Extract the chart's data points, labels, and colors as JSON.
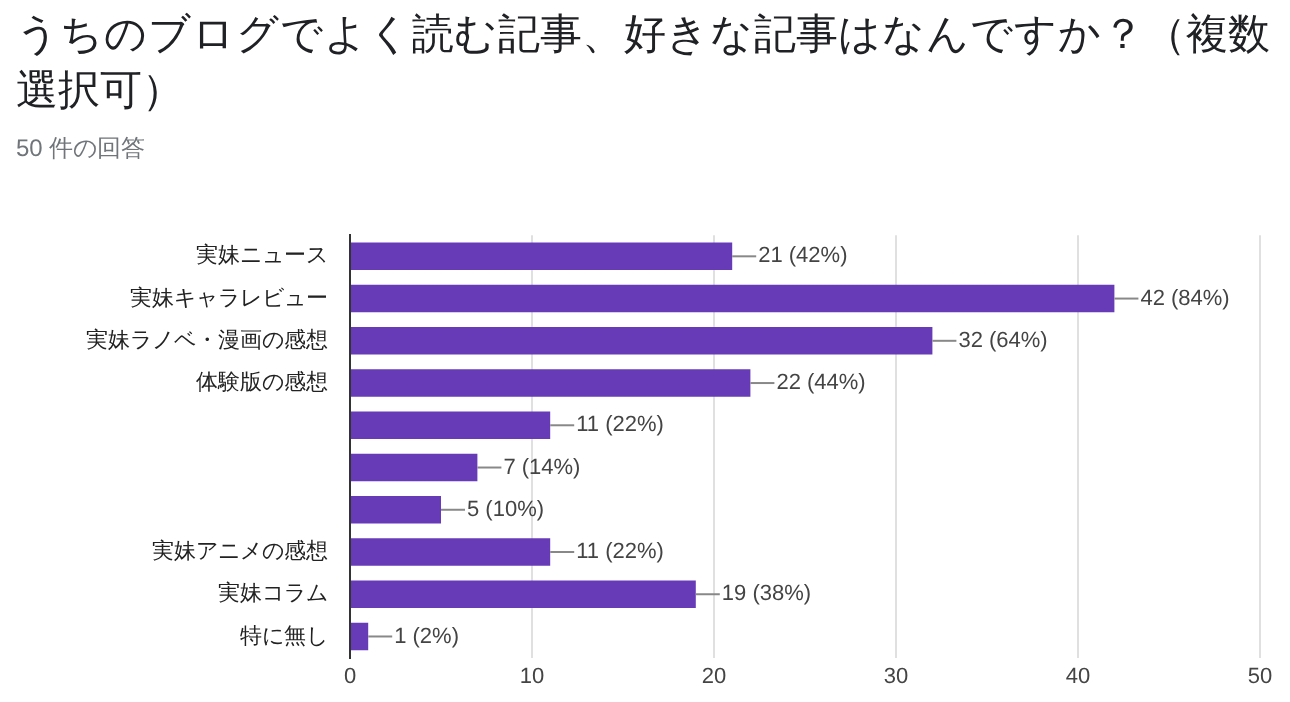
{
  "chart_data": {
    "type": "bar",
    "orientation": "horizontal",
    "title": "うちのブログでよく読む記事、好きな記事はなんですか？（複数選択可）",
    "subtitle": "50 件の回答",
    "categories": [
      "実妹ニュース",
      "実妹キャラレビュー",
      "実妹ラノベ・漫画の感想",
      "体験版の感想",
      null,
      null,
      null,
      "実妹アニメの感想",
      "実妹コラム",
      "特に無し"
    ],
    "values": [
      21,
      42,
      32,
      22,
      11,
      7,
      5,
      11,
      19,
      1
    ],
    "value_labels": [
      "21 (42%)",
      "42 (84%)",
      "32 (64%)",
      "22 (44%)",
      "11 (22%)",
      "7 (14%)",
      "5 (10%)",
      "11 (22%)",
      "19 (38%)",
      "1 (2%)"
    ],
    "color": "#673ab7",
    "xlim": [
      0,
      50
    ],
    "xticks": [
      0,
      10,
      20,
      30,
      40,
      50
    ],
    "grid": "x",
    "legend": false
  }
}
